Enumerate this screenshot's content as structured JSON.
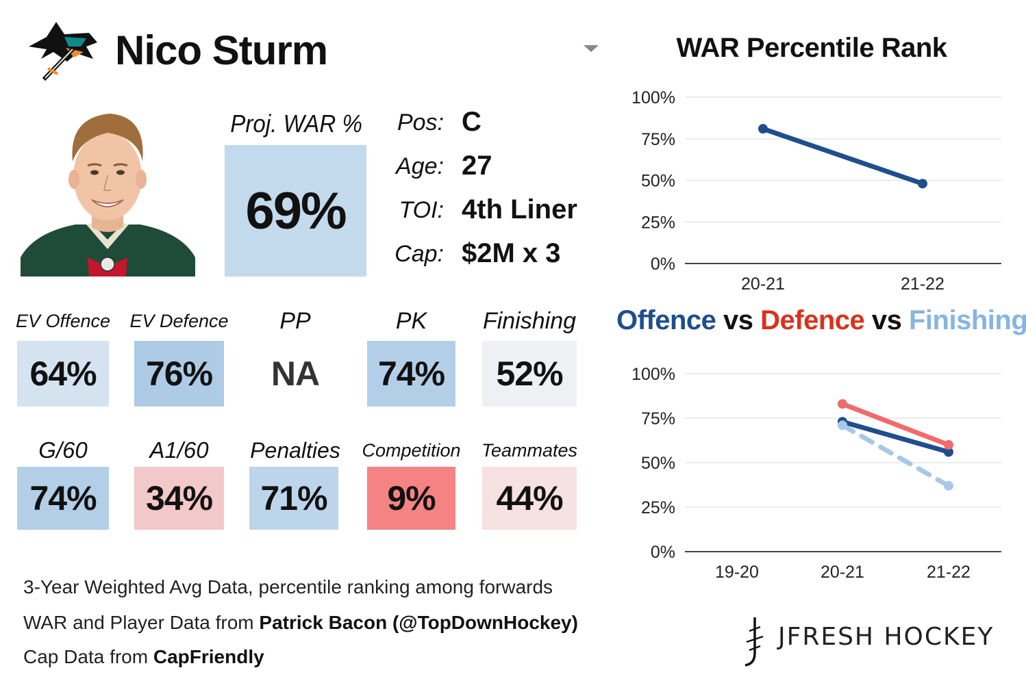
{
  "header": {
    "player_name": "Nico Sturm",
    "team_logo": "sharks-logo-icon",
    "dropdown_icon": "caret-down-icon"
  },
  "projection": {
    "label": "Proj. WAR %",
    "value": "69%",
    "color": "#c3d9ec"
  },
  "info": [
    {
      "label": "Pos:",
      "value": "C"
    },
    {
      "label": "Age:",
      "value": "27"
    },
    {
      "label": "TOI:",
      "value": "4th Liner"
    },
    {
      "label": "Cap:",
      "value": "$2M x 3"
    }
  ],
  "stats_row1": [
    {
      "label": "EV Offence",
      "value": "64%",
      "color": "#d5e3f0"
    },
    {
      "label": "EV Defence",
      "value": "76%",
      "color": "#aecbe6"
    },
    {
      "label": "PP",
      "value": "NA",
      "color": "#ffffff"
    },
    {
      "label": "PK",
      "value": "74%",
      "color": "#b3cfe8"
    },
    {
      "label": "Finishing",
      "value": "52%",
      "color": "#eef0f4"
    }
  ],
  "stats_row2": [
    {
      "label": "G/60",
      "value": "74%",
      "color": "#b3cfe8"
    },
    {
      "label": "A1/60",
      "value": "34%",
      "color": "#f3c8c8"
    },
    {
      "label": "Penalties",
      "value": "71%",
      "color": "#bdd5eb"
    },
    {
      "label": "Competition",
      "value": "9%",
      "color": "#f58383"
    },
    {
      "label": "Teammates",
      "value": "44%",
      "color": "#f6e1e2"
    }
  ],
  "footer": {
    "line1": "3-Year Weighted Avg Data, percentile ranking among forwards",
    "line2_prefix": "WAR and Player Data from ",
    "line2_bold": "Patrick Bacon (@TopDownHockey)",
    "line3_prefix": "Cap Data from ",
    "line3_bold": "CapFriendly"
  },
  "brand": {
    "name": "JFRESH HOCKEY"
  },
  "chart_data": [
    {
      "type": "line",
      "title": "WAR Percentile Rank",
      "x": [
        "20-21",
        "21-22"
      ],
      "series": [
        {
          "values": [
            81,
            48
          ],
          "color": "#1f4e8c"
        }
      ],
      "ylim": [
        0,
        100
      ],
      "yticks": [
        "0%",
        "25%",
        "50%",
        "75%",
        "100%"
      ],
      "grid": true
    },
    {
      "type": "line",
      "title_parts": [
        {
          "text": "Offence",
          "color": "#1f4e8c"
        },
        {
          "text": " vs ",
          "color": "#111111"
        },
        {
          "text": "Defence",
          "color": "#d8321c"
        },
        {
          "text": " vs ",
          "color": "#111111"
        },
        {
          "text": "Finishing",
          "color": "#86b5e0"
        }
      ],
      "x": [
        "19-20",
        "20-21",
        "21-22"
      ],
      "series": [
        {
          "name": "Offence",
          "values": [
            null,
            73,
            56
          ],
          "color": "#1f4e8c",
          "dashed": false
        },
        {
          "name": "Defence",
          "values": [
            null,
            83,
            60
          ],
          "color": "#f06b6b",
          "dashed": false
        },
        {
          "name": "Finishing",
          "values": [
            null,
            71,
            37
          ],
          "color": "#a8c8e8",
          "dashed": true
        }
      ],
      "ylim": [
        0,
        100
      ],
      "yticks": [
        "0%",
        "25%",
        "50%",
        "75%",
        "100%"
      ],
      "grid": true
    }
  ]
}
